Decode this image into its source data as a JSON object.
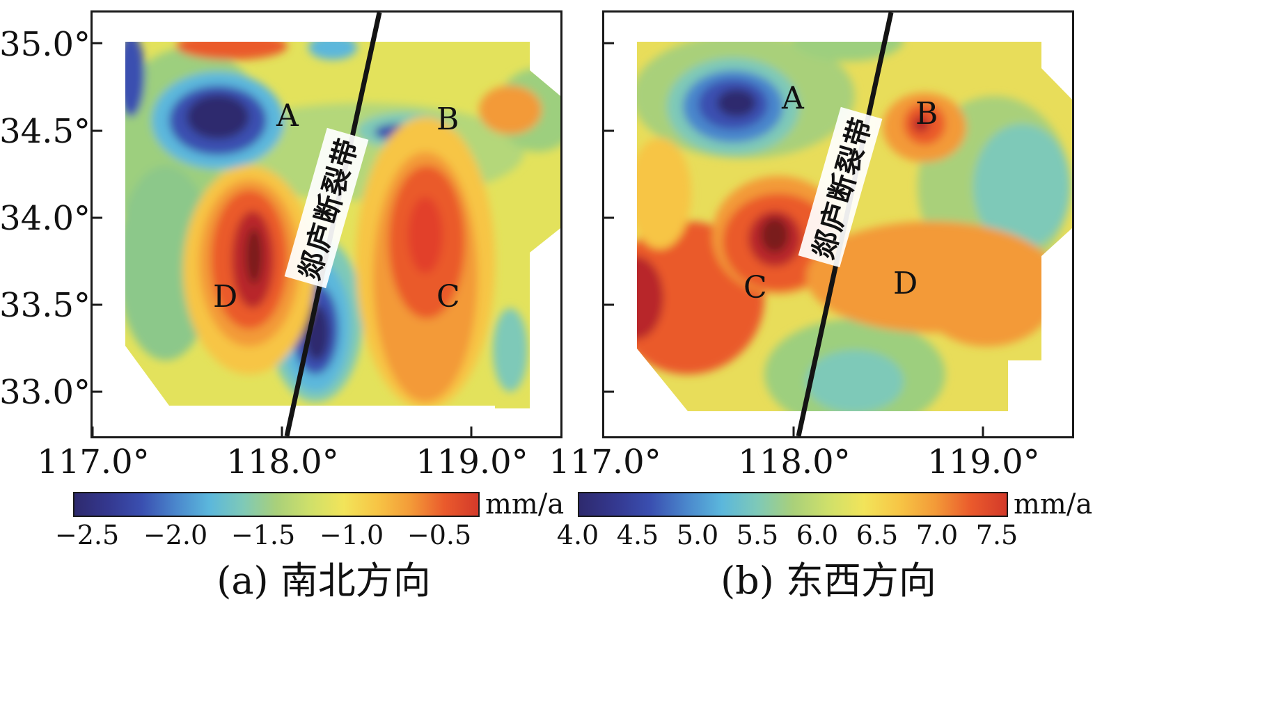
{
  "fault_name": "郯庐断裂带",
  "panels": [
    {
      "id": "a",
      "caption": "(a) 南北方向",
      "unit": "mm/a",
      "y_ticks": [
        "35.0°",
        "34.5°",
        "34.0°",
        "33.5°",
        "33.0°"
      ],
      "x_ticks": [
        "117.0°",
        "118.0°",
        "119.0°"
      ],
      "points": [
        {
          "label": "A",
          "lon": 118.0,
          "lat": 34.58
        },
        {
          "label": "B",
          "lon": 118.85,
          "lat": 34.58
        },
        {
          "label": "C",
          "lon": 118.85,
          "lat": 33.53
        },
        {
          "label": "D",
          "lon": 117.62,
          "lat": 33.53
        }
      ],
      "colorbar_ticks": [
        "−2.5",
        "−2.0",
        "−1.5",
        "−1.0",
        "−0.5"
      ],
      "colorbar_range": [
        -2.7,
        -0.4
      ]
    },
    {
      "id": "b",
      "caption": "(b) 东西方向",
      "unit": "mm/a",
      "y_ticks": [
        "35.0°",
        "34.5°",
        "34.0°",
        "33.5°",
        "33.0°"
      ],
      "x_ticks": [
        "117.0°",
        "118.0°",
        "119.0°"
      ],
      "points": [
        {
          "label": "A",
          "lon": 118.0,
          "lat": 34.68
        },
        {
          "label": "B",
          "lon": 118.72,
          "lat": 34.58
        },
        {
          "label": "C",
          "lon": 117.8,
          "lat": 33.6
        },
        {
          "label": "D",
          "lon": 118.6,
          "lat": 33.65
        }
      ],
      "colorbar_ticks": [
        "4.0",
        "4.5",
        "5.0",
        "5.5",
        "6.0",
        "6.5",
        "7.0",
        "7.5"
      ],
      "colorbar_range": [
        4.0,
        7.6
      ]
    }
  ],
  "map_extent": {
    "lon": [
      117.0,
      119.5
    ],
    "lat": [
      32.73,
      35.18
    ]
  },
  "fault_line": {
    "lon": [
      118.03,
      118.51
    ],
    "lat": [
      32.73,
      35.18
    ]
  },
  "palette": [
    "#2e2a6e",
    "#34388f",
    "#3a4fb0",
    "#4a86cc",
    "#5bb7dc",
    "#7ec9b8",
    "#a9d07a",
    "#cfe06a",
    "#f2e45a",
    "#f7c545",
    "#f39a38",
    "#ea5a2c",
    "#b8262a"
  ]
}
